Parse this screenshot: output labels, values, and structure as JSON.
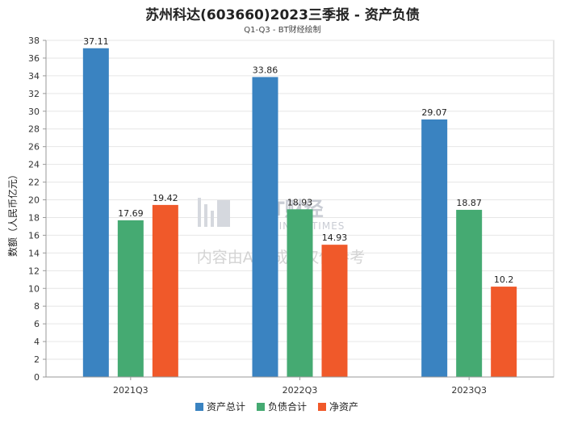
{
  "chart_data": {
    "type": "bar",
    "title": "苏州科达(603660)2023三季报 - 资产负债",
    "subtitle": "Q1-Q3 - BT财经绘制",
    "ylabel": "数额（人民币亿元）",
    "xlabel": "",
    "ylim": [
      0,
      38
    ],
    "yticks": [
      0,
      2,
      4,
      6,
      8,
      10,
      12,
      14,
      16,
      18,
      20,
      22,
      24,
      26,
      28,
      30,
      32,
      34,
      36,
      38
    ],
    "categories": [
      "2021Q3",
      "2022Q3",
      "2023Q3"
    ],
    "series": [
      {
        "name": "资产总计",
        "color": "#3a83c1",
        "values": [
          37.11,
          33.86,
          29.07
        ]
      },
      {
        "name": "负债合计",
        "color": "#45aa72",
        "values": [
          17.69,
          18.93,
          18.87
        ]
      },
      {
        "name": "净资产",
        "color": "#f0592a",
        "values": [
          19.42,
          14.93,
          10.2
        ]
      }
    ],
    "legend_position": "bottom",
    "grid": true
  },
  "watermark": {
    "brand": "BT财经",
    "brand_en": "BUSINESSTIMES",
    "notice": "内容由AI生成，仅供参考"
  }
}
